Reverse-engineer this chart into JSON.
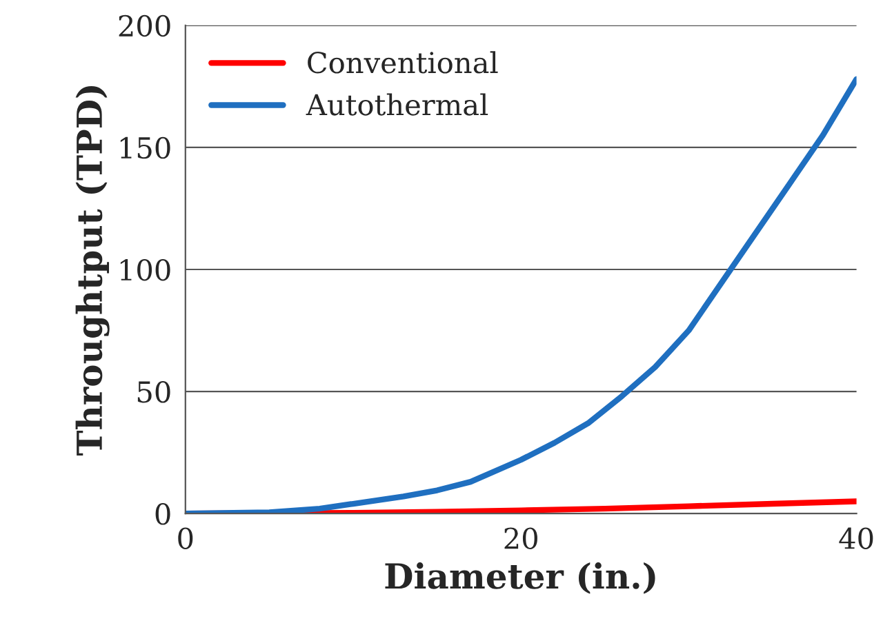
{
  "chart_data": {
    "type": "line",
    "xlabel": "Diameter (in.)",
    "ylabel": "Throughtput (TPD)",
    "xlim": [
      0,
      40
    ],
    "xticks": [
      0,
      20,
      40
    ],
    "ylim": [
      0,
      200
    ],
    "yticks": [
      0,
      50,
      100,
      150,
      200
    ],
    "grid": "y",
    "legend": "top left",
    "marker": "none",
    "line_style": "solid",
    "series": [
      {
        "name": "Conventional",
        "color": "#ff0000",
        "x": [
          0,
          10,
          15,
          20,
          25,
          30,
          35,
          40
        ],
        "values": [
          0,
          0.3,
          0.7,
          1.3,
          2,
          3,
          4,
          5
        ]
      },
      {
        "name": "Autothermal",
        "color": "#1f6fc0",
        "x": [
          0,
          5,
          8,
          10,
          13,
          15,
          17,
          20,
          22,
          24,
          26,
          28,
          30,
          32,
          34,
          36,
          38,
          40
        ],
        "values": [
          0,
          0.5,
          2,
          4,
          7,
          9.5,
          13,
          22,
          29,
          37,
          48,
          60,
          75,
          95,
          115,
          135,
          155,
          178
        ]
      }
    ]
  }
}
